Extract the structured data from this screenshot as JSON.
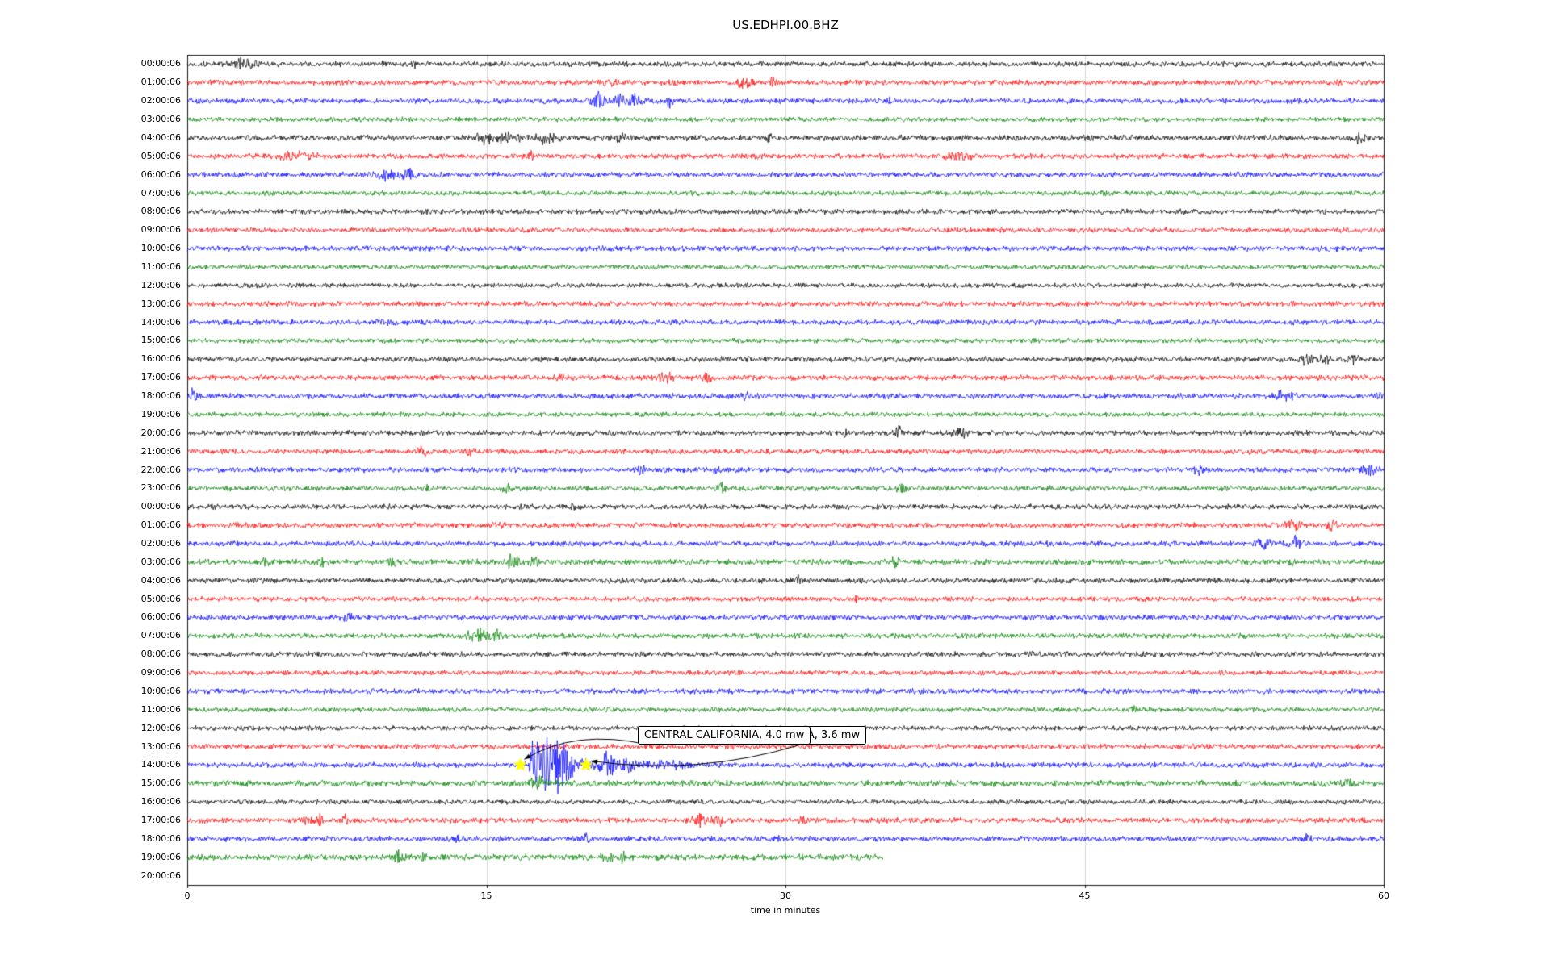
{
  "window": {
    "title": "US.EDHPI.00.BHZ"
  },
  "chart_data": {
    "type": "line",
    "chart_kind": "seismogram-day-plot",
    "title": "US.EDHPI.00.BHZ",
    "xlabel": "time in minutes",
    "xlim": [
      0,
      60
    ],
    "x_ticks": [
      0,
      15,
      30,
      45,
      60
    ],
    "grid": {
      "vertical_minutes": [
        15,
        30,
        45
      ],
      "color": "#cccccc"
    },
    "trace_colors": {
      "black": "#000000",
      "red": "#ff0000",
      "blue": "#0000ff",
      "green": "#008000"
    },
    "annotation": {
      "labels": [
        "CENTRAL CALIFORNIA, 4.0 mw",
        "IA, 3.6 mw"
      ],
      "row_label": "14:00:06",
      "row_index": 38,
      "marker_minutes": [
        16.7,
        20.0
      ],
      "marker_color": "#ffff00"
    },
    "rows": [
      {
        "label": "00:00:06",
        "color": "black",
        "noise": 3.0,
        "events": [
          {
            "t": 2.6,
            "a": 5,
            "w": 0.25
          },
          {
            "t": 3.1,
            "a": 4,
            "w": 0.3
          },
          {
            "t": 11.3,
            "a": 3,
            "w": 0.2
          }
        ]
      },
      {
        "label": "01:00:06",
        "color": "red",
        "noise": 3.0,
        "events": [
          {
            "t": 21.2,
            "a": 4,
            "w": 0.3
          },
          {
            "t": 24.6,
            "a": 3,
            "w": 0.2
          },
          {
            "t": 27.9,
            "a": 5,
            "w": 0.35
          },
          {
            "t": 29.4,
            "a": 4,
            "w": 0.2
          },
          {
            "t": 57.6,
            "a": 5,
            "w": 0.12
          }
        ]
      },
      {
        "label": "02:00:06",
        "color": "blue",
        "noise": 3.0,
        "events": [
          {
            "t": 20.6,
            "a": 7,
            "w": 0.3
          },
          {
            "t": 21.6,
            "a": 8,
            "w": 0.25
          },
          {
            "t": 22.4,
            "a": 7,
            "w": 0.3
          },
          {
            "t": 24.2,
            "a": 12,
            "w": 0.12
          },
          {
            "t": 35.1,
            "a": 4,
            "w": 0.2
          }
        ]
      },
      {
        "label": "03:00:06",
        "color": "green",
        "noise": 2.7,
        "events": []
      },
      {
        "label": "04:00:06",
        "color": "black",
        "noise": 3.2,
        "events": [
          {
            "t": 15.0,
            "a": 5,
            "w": 0.5
          },
          {
            "t": 16.0,
            "a": 4,
            "w": 0.6
          },
          {
            "t": 18.0,
            "a": 4,
            "w": 0.7
          },
          {
            "t": 21.8,
            "a": 4,
            "w": 0.3
          },
          {
            "t": 29.2,
            "a": 3,
            "w": 0.15
          },
          {
            "t": 58.8,
            "a": 4.5,
            "w": 0.5
          }
        ]
      },
      {
        "label": "05:00:06",
        "color": "red",
        "noise": 3.0,
        "events": [
          {
            "t": 5.5,
            "a": 3,
            "w": 1.2
          },
          {
            "t": 17.2,
            "a": 4.5,
            "w": 0.12
          },
          {
            "t": 38.7,
            "a": 4.5,
            "w": 0.6
          }
        ]
      },
      {
        "label": "06:00:06",
        "color": "blue",
        "noise": 3.0,
        "events": [
          {
            "t": 10.0,
            "a": 4.5,
            "w": 0.7
          },
          {
            "t": 11.1,
            "a": 11,
            "w": 0.2
          }
        ]
      },
      {
        "label": "07:00:06",
        "color": "green",
        "noise": 2.7,
        "events": [
          {
            "t": 46.0,
            "a": 3,
            "w": 0.15
          }
        ]
      },
      {
        "label": "08:00:06",
        "color": "black",
        "noise": 3.0,
        "events": []
      },
      {
        "label": "09:00:06",
        "color": "red",
        "noise": 2.7,
        "events": []
      },
      {
        "label": "10:00:06",
        "color": "blue",
        "noise": 3.0,
        "events": []
      },
      {
        "label": "11:00:06",
        "color": "green",
        "noise": 2.7,
        "events": []
      },
      {
        "label": "12:00:06",
        "color": "black",
        "noise": 2.7,
        "events": []
      },
      {
        "label": "13:00:06",
        "color": "red",
        "noise": 3.0,
        "events": []
      },
      {
        "label": "14:00:06",
        "color": "blue",
        "noise": 3.0,
        "events": [
          {
            "t": 9.8,
            "a": 2.5,
            "w": 0.3
          }
        ]
      },
      {
        "label": "15:00:06",
        "color": "green",
        "noise": 2.7,
        "events": []
      },
      {
        "label": "16:00:06",
        "color": "black",
        "noise": 3.0,
        "events": [
          {
            "t": 56.2,
            "a": 8,
            "w": 0.3
          },
          {
            "t": 57.0,
            "a": 7,
            "w": 0.25
          },
          {
            "t": 58.6,
            "a": 6,
            "w": 0.3
          }
        ]
      },
      {
        "label": "17:00:06",
        "color": "red",
        "noise": 3.0,
        "events": [
          {
            "t": 18.7,
            "a": 4,
            "w": 0.15
          },
          {
            "t": 24.0,
            "a": 5.5,
            "w": 0.4
          },
          {
            "t": 26.0,
            "a": 4.5,
            "w": 0.25
          }
        ]
      },
      {
        "label": "18:00:06",
        "color": "blue",
        "noise": 3.0,
        "events": [
          {
            "t": 0.3,
            "a": 6,
            "w": 0.2
          },
          {
            "t": 28.1,
            "a": 4.5,
            "w": 0.25
          },
          {
            "t": 55.0,
            "a": 4.5,
            "w": 0.5
          },
          {
            "t": 59.7,
            "a": 4,
            "w": 0.2
          }
        ]
      },
      {
        "label": "19:00:06",
        "color": "green",
        "noise": 2.7,
        "events": []
      },
      {
        "label": "20:00:06",
        "color": "black",
        "noise": 3.0,
        "events": [
          {
            "t": 33.0,
            "a": 3,
            "w": 0.15
          },
          {
            "t": 35.7,
            "a": 7,
            "w": 0.18
          },
          {
            "t": 38.8,
            "a": 4.5,
            "w": 0.4
          }
        ]
      },
      {
        "label": "21:00:06",
        "color": "red",
        "noise": 3.0,
        "events": [
          {
            "t": 11.8,
            "a": 4.5,
            "w": 0.25
          },
          {
            "t": 14.1,
            "a": 4,
            "w": 0.25
          },
          {
            "t": 26.6,
            "a": 5.5,
            "w": 0.15
          }
        ]
      },
      {
        "label": "22:00:06",
        "color": "blue",
        "noise": 3.0,
        "events": [
          {
            "t": 22.8,
            "a": 5.5,
            "w": 0.15
          },
          {
            "t": 26.5,
            "a": 4.5,
            "w": 0.15
          },
          {
            "t": 50.7,
            "a": 4.5,
            "w": 0.25
          },
          {
            "t": 59.2,
            "a": 5.5,
            "w": 0.35
          }
        ]
      },
      {
        "label": "23:00:06",
        "color": "green",
        "noise": 3.0,
        "events": [
          {
            "t": 12.0,
            "a": 3,
            "w": 0.2
          },
          {
            "t": 16.0,
            "a": 5.5,
            "w": 0.18
          },
          {
            "t": 26.7,
            "a": 6.5,
            "w": 0.25
          },
          {
            "t": 35.8,
            "a": 6.5,
            "w": 0.2
          }
        ]
      },
      {
        "label": "00:00:06",
        "color": "black",
        "noise": 3.0,
        "events": [
          {
            "t": 19.4,
            "a": 4.5,
            "w": 0.15
          }
        ]
      },
      {
        "label": "01:00:06",
        "color": "red",
        "noise": 3.0,
        "events": [
          {
            "t": 15.7,
            "a": 4.5,
            "w": 0.15
          },
          {
            "t": 55.4,
            "a": 6,
            "w": 0.3
          },
          {
            "t": 57.4,
            "a": 5.5,
            "w": 0.2
          }
        ]
      },
      {
        "label": "02:00:06",
        "color": "blue",
        "noise": 3.0,
        "events": [
          {
            "t": 54.0,
            "a": 6,
            "w": 0.3
          },
          {
            "t": 55.5,
            "a": 6.5,
            "w": 0.3
          }
        ]
      },
      {
        "label": "03:00:06",
        "color": "green",
        "noise": 3.2,
        "events": [
          {
            "t": 4.0,
            "a": 4.5,
            "w": 0.25
          },
          {
            "t": 6.7,
            "a": 4.5,
            "w": 0.18
          },
          {
            "t": 10.2,
            "a": 4,
            "w": 0.2
          },
          {
            "t": 16.3,
            "a": 6,
            "w": 0.3
          },
          {
            "t": 17.4,
            "a": 4.5,
            "w": 0.2
          },
          {
            "t": 35.5,
            "a": 6,
            "w": 0.15
          },
          {
            "t": 55.3,
            "a": 4.5,
            "w": 0.15
          }
        ]
      },
      {
        "label": "04:00:06",
        "color": "black",
        "noise": 3.0,
        "events": [
          {
            "t": 30.7,
            "a": 4.5,
            "w": 0.25
          }
        ]
      },
      {
        "label": "05:00:06",
        "color": "red",
        "noise": 2.7,
        "events": [
          {
            "t": 33.5,
            "a": 4,
            "w": 0.15
          }
        ]
      },
      {
        "label": "06:00:06",
        "color": "blue",
        "noise": 3.0,
        "events": [
          {
            "t": 8.0,
            "a": 3.5,
            "w": 0.25
          }
        ]
      },
      {
        "label": "07:00:06",
        "color": "green",
        "noise": 3.0,
        "events": [
          {
            "t": 14.6,
            "a": 5.5,
            "w": 0.6
          },
          {
            "t": 15.6,
            "a": 5.5,
            "w": 0.35
          }
        ]
      },
      {
        "label": "08:00:06",
        "color": "black",
        "noise": 3.0,
        "events": []
      },
      {
        "label": "09:00:06",
        "color": "red",
        "noise": 2.7,
        "events": []
      },
      {
        "label": "10:00:06",
        "color": "blue",
        "noise": 3.0,
        "events": []
      },
      {
        "label": "11:00:06",
        "color": "green",
        "noise": 2.7,
        "events": [
          {
            "t": 47.5,
            "a": 2.5,
            "w": 0.2
          }
        ]
      },
      {
        "label": "12:00:06",
        "color": "black",
        "noise": 2.7,
        "events": []
      },
      {
        "label": "13:00:06",
        "color": "red",
        "noise": 3.0,
        "events": []
      },
      {
        "label": "14:00:06",
        "color": "blue",
        "noise": 3.0,
        "events": [
          {
            "t": 17.45,
            "a": 40,
            "w": 0.22,
            "d": 1.1
          },
          {
            "t": 18.6,
            "a": 14,
            "w": 0.7
          },
          {
            "t": 21.1,
            "a": 13,
            "w": 0.3
          },
          {
            "t": 21.9,
            "a": 6,
            "w": 0.5
          },
          {
            "t": 24.0,
            "a": 3,
            "w": 1.2
          }
        ]
      },
      {
        "label": "15:00:06",
        "color": "green",
        "noise": 3.5,
        "events": [
          {
            "t": 17.6,
            "a": 5,
            "w": 0.4
          },
          {
            "t": 58.2,
            "a": 4,
            "w": 0.3
          }
        ]
      },
      {
        "label": "16:00:06",
        "color": "black",
        "noise": 2.7,
        "events": []
      },
      {
        "label": "17:00:06",
        "color": "red",
        "noise": 3.0,
        "events": [
          {
            "t": 6.0,
            "a": 6,
            "w": 0.2
          },
          {
            "t": 6.6,
            "a": 7,
            "w": 0.18
          },
          {
            "t": 7.9,
            "a": 5,
            "w": 0.15
          },
          {
            "t": 25.6,
            "a": 6.5,
            "w": 0.35
          },
          {
            "t": 26.6,
            "a": 5.5,
            "w": 0.25
          },
          {
            "t": 30.9,
            "a": 4.5,
            "w": 0.15
          }
        ]
      },
      {
        "label": "18:00:06",
        "color": "blue",
        "noise": 3.0,
        "events": [
          {
            "t": 13.5,
            "a": 4.5,
            "w": 0.15
          },
          {
            "t": 20.0,
            "a": 4,
            "w": 0.15
          },
          {
            "t": 29.6,
            "a": 4.5,
            "w": 0.15
          },
          {
            "t": 56.1,
            "a": 4,
            "w": 0.25
          }
        ]
      },
      {
        "label": "19:00:06",
        "color": "green",
        "noise": 3.5,
        "events": [
          {
            "t": 10.6,
            "a": 4.5,
            "w": 0.3
          },
          {
            "t": 11.8,
            "a": 4.5,
            "w": 0.15
          },
          {
            "t": 21.1,
            "a": 5.5,
            "w": 0.25
          },
          {
            "t": 21.8,
            "a": 4.5,
            "w": 0.2
          }
        ],
        "end": 34.9
      },
      {
        "label": "20:00:06",
        "color": "black",
        "noise": 0,
        "events": [],
        "end": 0
      }
    ]
  }
}
